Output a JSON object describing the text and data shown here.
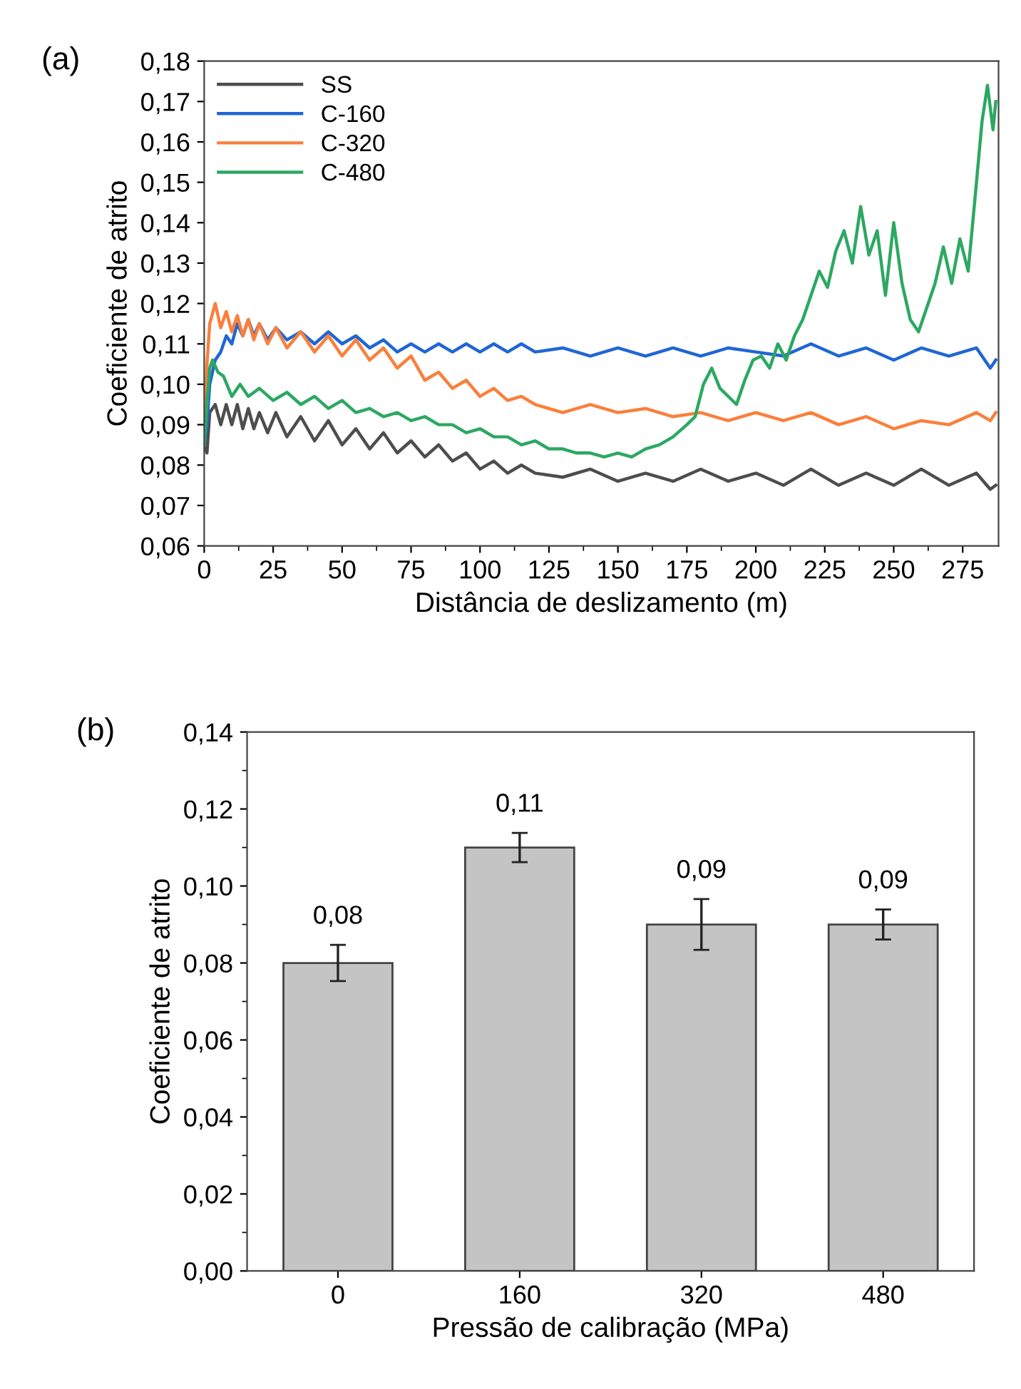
{
  "chart_data": [
    {
      "type": "line",
      "xlabel": "Distância de deslizamento (m)",
      "ylabel": "Coeficiente de atrito",
      "annotations": [
        "(a)"
      ],
      "legend": "top left",
      "grid": false,
      "marker": "none",
      "line_style": "solid",
      "xlim": [
        0,
        288
      ],
      "xticks": [
        0,
        25,
        50,
        75,
        100,
        125,
        150,
        175,
        200,
        225,
        250,
        275
      ],
      "ylim": [
        0.06,
        0.18
      ],
      "yticks": [
        {
          "value": 0.06,
          "label": "0,06"
        },
        {
          "value": 0.07,
          "label": "0,07"
        },
        {
          "value": 0.08,
          "label": "0,08"
        },
        {
          "value": 0.09,
          "label": "0,09"
        },
        {
          "value": 0.1,
          "label": "0,10"
        },
        {
          "value": 0.11,
          "label": "0,11"
        },
        {
          "value": 0.12,
          "label": "0,12"
        },
        {
          "value": 0.13,
          "label": "0,13"
        },
        {
          "value": 0.14,
          "label": "0,14"
        },
        {
          "value": 0.15,
          "label": "0,15"
        },
        {
          "value": 0.16,
          "label": "0,16"
        },
        {
          "value": 0.17,
          "label": "0,17"
        },
        {
          "value": 0.18,
          "label": "0,18"
        }
      ],
      "series": [
        {
          "name": "SS",
          "color": "#4d4d4d",
          "x": [
            0,
            1,
            2,
            4,
            6,
            8,
            10,
            12,
            14,
            16,
            18,
            20,
            23,
            26,
            30,
            35,
            40,
            45,
            50,
            55,
            60,
            65,
            70,
            75,
            80,
            85,
            90,
            95,
            100,
            105,
            110,
            115,
            120,
            130,
            140,
            150,
            160,
            170,
            180,
            190,
            200,
            210,
            220,
            230,
            240,
            250,
            260,
            270,
            280,
            285,
            287
          ],
          "values": [
            0.085,
            0.083,
            0.093,
            0.095,
            0.09,
            0.095,
            0.09,
            0.095,
            0.089,
            0.094,
            0.089,
            0.093,
            0.088,
            0.093,
            0.087,
            0.092,
            0.086,
            0.091,
            0.085,
            0.089,
            0.084,
            0.088,
            0.083,
            0.086,
            0.082,
            0.085,
            0.081,
            0.083,
            0.079,
            0.081,
            0.078,
            0.08,
            0.078,
            0.077,
            0.079,
            0.076,
            0.078,
            0.076,
            0.079,
            0.076,
            0.078,
            0.075,
            0.079,
            0.075,
            0.078,
            0.075,
            0.079,
            0.075,
            0.078,
            0.074,
            0.075
          ]
        },
        {
          "name": "C-160",
          "color": "#1f66d6",
          "x": [
            0,
            1,
            2,
            4,
            6,
            8,
            10,
            12,
            14,
            16,
            18,
            20,
            23,
            26,
            30,
            35,
            40,
            45,
            50,
            55,
            60,
            65,
            70,
            75,
            80,
            85,
            90,
            95,
            100,
            105,
            110,
            115,
            120,
            130,
            140,
            150,
            160,
            170,
            180,
            190,
            200,
            210,
            220,
            230,
            240,
            250,
            260,
            270,
            280,
            285,
            287
          ],
          "values": [
            0.085,
            0.09,
            0.1,
            0.106,
            0.108,
            0.112,
            0.11,
            0.115,
            0.112,
            0.116,
            0.112,
            0.115,
            0.111,
            0.114,
            0.111,
            0.113,
            0.11,
            0.113,
            0.11,
            0.112,
            0.109,
            0.111,
            0.108,
            0.11,
            0.108,
            0.11,
            0.108,
            0.11,
            0.108,
            0.11,
            0.108,
            0.11,
            0.108,
            0.109,
            0.107,
            0.109,
            0.107,
            0.109,
            0.107,
            0.109,
            0.108,
            0.107,
            0.11,
            0.107,
            0.109,
            0.106,
            0.109,
            0.107,
            0.109,
            0.104,
            0.106
          ]
        },
        {
          "name": "C-320",
          "color": "#fa7f3a",
          "x": [
            0,
            1,
            2,
            4,
            6,
            8,
            10,
            12,
            14,
            16,
            18,
            20,
            23,
            26,
            30,
            35,
            40,
            45,
            50,
            55,
            60,
            65,
            70,
            75,
            80,
            85,
            90,
            95,
            100,
            105,
            110,
            115,
            120,
            130,
            140,
            150,
            160,
            170,
            180,
            190,
            200,
            210,
            220,
            230,
            240,
            250,
            260,
            270,
            280,
            285,
            287
          ],
          "values": [
            0.085,
            0.105,
            0.115,
            0.12,
            0.114,
            0.118,
            0.113,
            0.117,
            0.112,
            0.116,
            0.111,
            0.115,
            0.11,
            0.114,
            0.109,
            0.113,
            0.108,
            0.112,
            0.107,
            0.111,
            0.106,
            0.109,
            0.104,
            0.107,
            0.101,
            0.103,
            0.099,
            0.101,
            0.097,
            0.099,
            0.096,
            0.097,
            0.095,
            0.093,
            0.095,
            0.093,
            0.094,
            0.092,
            0.093,
            0.091,
            0.093,
            0.091,
            0.093,
            0.09,
            0.092,
            0.089,
            0.091,
            0.09,
            0.093,
            0.091,
            0.093
          ]
        },
        {
          "name": "C-480",
          "color": "#2ca862",
          "x": [
            0,
            1,
            2,
            3,
            5,
            7,
            10,
            13,
            16,
            20,
            25,
            30,
            35,
            40,
            45,
            50,
            55,
            60,
            65,
            70,
            75,
            80,
            85,
            90,
            95,
            100,
            105,
            110,
            115,
            120,
            125,
            130,
            135,
            140,
            145,
            150,
            155,
            160,
            165,
            170,
            175,
            178,
            181,
            184,
            187,
            190,
            193,
            196,
            199,
            202,
            205,
            208,
            211,
            214,
            217,
            220,
            223,
            226,
            229,
            232,
            235,
            238,
            241,
            244,
            247,
            250,
            253,
            256,
            259,
            262,
            265,
            268,
            271,
            274,
            277,
            280,
            282,
            284,
            286,
            287
          ],
          "values": [
            0.085,
            0.095,
            0.104,
            0.106,
            0.103,
            0.102,
            0.097,
            0.1,
            0.097,
            0.099,
            0.096,
            0.098,
            0.095,
            0.097,
            0.094,
            0.096,
            0.093,
            0.094,
            0.092,
            0.093,
            0.091,
            0.092,
            0.09,
            0.09,
            0.088,
            0.089,
            0.087,
            0.087,
            0.085,
            0.086,
            0.084,
            0.084,
            0.083,
            0.083,
            0.082,
            0.083,
            0.082,
            0.084,
            0.085,
            0.087,
            0.09,
            0.092,
            0.1,
            0.104,
            0.099,
            0.097,
            0.095,
            0.101,
            0.106,
            0.107,
            0.104,
            0.11,
            0.106,
            0.112,
            0.116,
            0.122,
            0.128,
            0.124,
            0.133,
            0.138,
            0.13,
            0.144,
            0.132,
            0.138,
            0.122,
            0.14,
            0.125,
            0.116,
            0.113,
            0.119,
            0.125,
            0.134,
            0.125,
            0.136,
            0.128,
            0.15,
            0.165,
            0.174,
            0.163,
            0.17
          ]
        }
      ]
    },
    {
      "type": "bar",
      "xlabel": "Pressão de calibração (MPa)",
      "ylabel": "Coeficiente de atrito",
      "annotations": [
        "(b)"
      ],
      "grid": false,
      "categories": [
        "0",
        "160",
        "320",
        "480"
      ],
      "values": [
        0.08,
        0.11,
        0.09,
        0.09
      ],
      "errors": [
        0.0047,
        0.0038,
        0.0066,
        0.0039
      ],
      "value_labels": [
        "0,08",
        "0,11",
        "0,09",
        "0,09"
      ],
      "color": "#c4c4c4",
      "ylim": [
        0,
        0.14
      ],
      "yticks": [
        {
          "value": 0,
          "label": "0,00"
        },
        {
          "value": 0.02,
          "label": "0,02"
        },
        {
          "value": 0.04,
          "label": "0,04"
        },
        {
          "value": 0.06,
          "label": "0,06"
        },
        {
          "value": 0.08,
          "label": "0,08"
        },
        {
          "value": 0.1,
          "label": "0,10"
        },
        {
          "value": 0.12,
          "label": "0,12"
        },
        {
          "value": 0.14,
          "label": "0,14"
        }
      ]
    }
  ]
}
